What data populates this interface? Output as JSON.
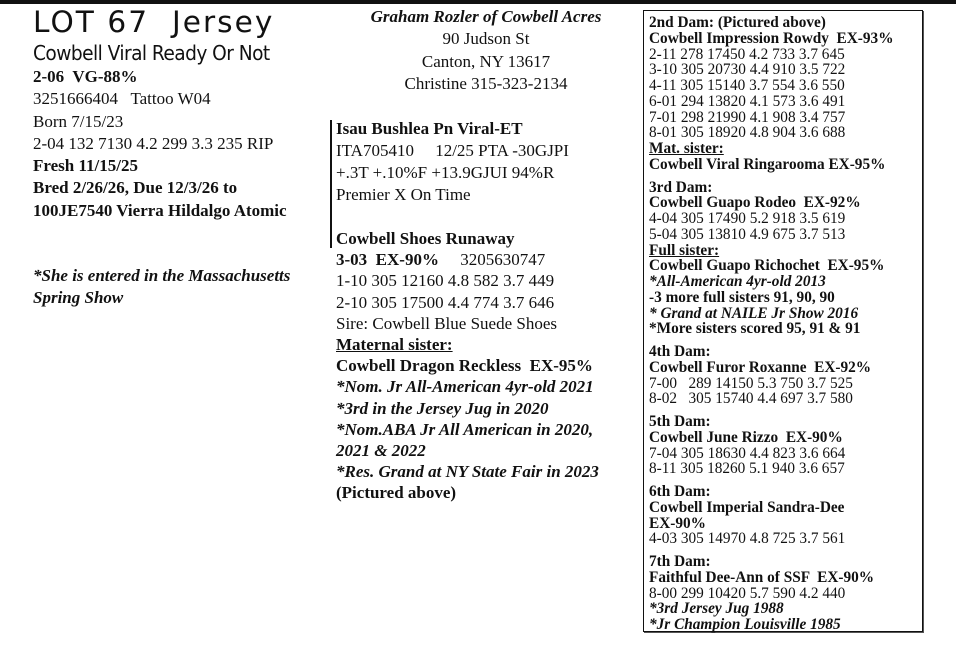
{
  "lot": {
    "title": "LOT 67  Jersey",
    "name": "Cowbell Viral Ready Or Not",
    "classification": "2-06  VG-88%",
    "reg": "3251666404   Tattoo W04",
    "born": "Born 7/15/23",
    "record": "2-04 132 7130 4.2 299 3.3 235 RIP",
    "fresh": "Fresh 11/15/25",
    "bred": "Bred 2/26/26, Due 12/3/26 to",
    "service_sire": "100JE7540 Vierra Hildalgo Atomic",
    "note": [
      "*She is entered in the Massachusetts",
      "Spring Show"
    ]
  },
  "consignor": {
    "name": "Graham Rozler of Cowbell Acres",
    "street": "90 Judson St",
    "city": "Canton, NY 13617",
    "contact": "Christine 315-323-2134"
  },
  "sire": {
    "name": "Isau Bushlea Pn Viral-ET",
    "line1": "ITA705410     12/25 PTA -30GJPI",
    "line2": "+.3T +.10%F +13.9GJUI 94%R",
    "line3": "Premier X On Time"
  },
  "dam": {
    "name": "Cowbell Shoes Runaway",
    "class": "3-03  EX-90%",
    "reg": "     3205630747",
    "records": [
      "1-10 305 12160 4.8 582 3.7 449",
      "2-10 305 17500 4.4 774 3.7 646"
    ],
    "sire": "Sire: Cowbell Blue Suede Shoes",
    "sister_label": "Maternal sister:",
    "sister": "Cowbell Dragon Reckless  EX-95%",
    "honors": [
      "*Nom. Jr All-American 4yr-old 2021",
      "*3rd in the Jersey Jug in 2020",
      "*Nom.ABA Jr All American in 2020,",
      "2021 & 2022",
      "*Res. Grand at NY State Fair in 2023"
    ],
    "pictured": "(Pictured above)"
  },
  "pedigree": {
    "dam2": {
      "label": "2nd Dam: (Pictured above)",
      "name": "Cowbell Impression Rowdy  EX-93%",
      "records": [
        "2-11 278 17450 4.2 733 3.7 645",
        "3-10 305 20730 4.4 910 3.5 722",
        "4-11 305 15140 3.7 554 3.6 550",
        "6-01 294 13820 4.1 573 3.6 491",
        "7-01 298 21990 4.1 908 3.4 757",
        "8-01 305 18920 4.8 904 3.6 688"
      ],
      "sister_label": "Mat. sister:",
      "sister": "Cowbell Viral Ringarooma EX-95%"
    },
    "dam3": {
      "label": "3rd Dam:",
      "name": "Cowbell Guapo Rodeo  EX-92%",
      "records": [
        "4-04 305 17490 5.2 918 3.5 619",
        "5-04 305 13810 4.9 675 3.7 513"
      ],
      "sister_label": "Full sister:",
      "sister": "Cowbell Guapo Richochet  EX-95%",
      "notes": [
        "*All-American 4yr-old 2013",
        "-3 more full sisters 91, 90, 90",
        "* Grand at NAILE Jr Show 2016",
        "*More sisters scored 95, 91 & 91"
      ]
    },
    "dam4": {
      "label": "4th Dam:",
      "name": "Cowbell Furor Roxanne  EX-92%",
      "records": [
        "7-00   289 14150 5.3 750 3.7 525",
        "8-02   305 15740 4.4 697 3.7 580"
      ]
    },
    "dam5": {
      "label": "5th Dam:",
      "name": "Cowbell June Rizzo  EX-90%",
      "records": [
        "7-04 305 18630 4.4 823 3.6 664",
        "8-11 305 18260 5.1 940 3.6 657"
      ]
    },
    "dam6": {
      "label": "6th Dam:",
      "name": "Cowbell Imperial Sandra-Dee",
      "class": "EX-90%",
      "records": [
        "4-03 305 14970 4.8 725 3.7 561"
      ]
    },
    "dam7": {
      "label": "7th Dam:",
      "name": "Faithful Dee-Ann of SSF  EX-90%",
      "records": [
        "8-00 299 10420 5.7 590 4.2 440"
      ],
      "notes": [
        "*3rd Jersey Jug 1988",
        "*Jr Champion Louisville 1985"
      ]
    }
  }
}
